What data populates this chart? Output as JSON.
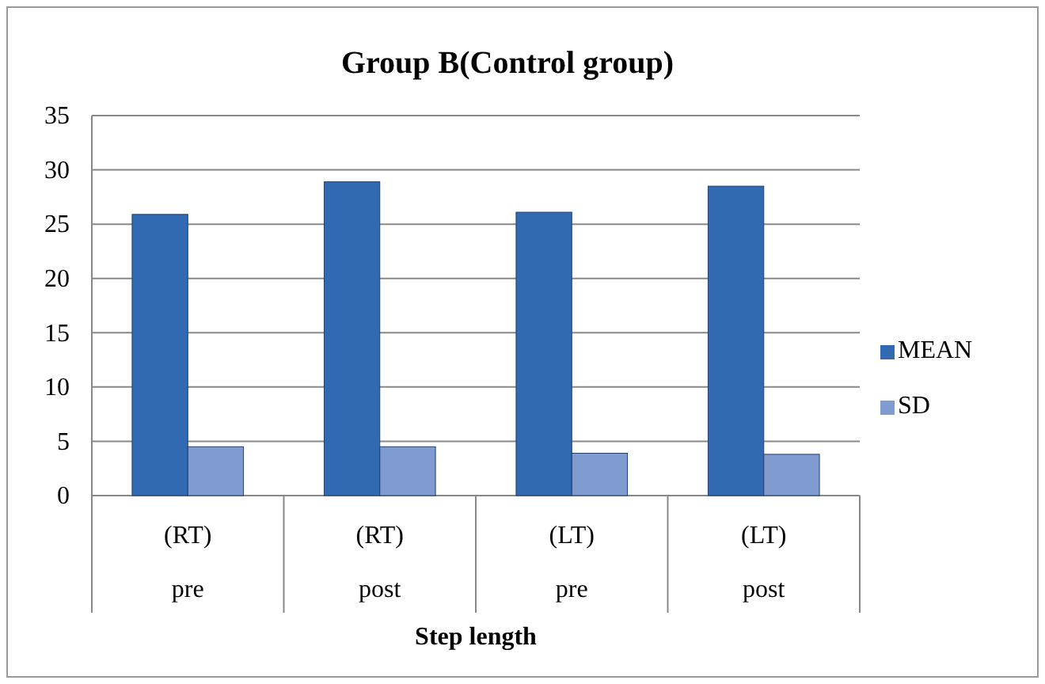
{
  "chart_data": {
    "type": "bar",
    "title": "Group B(Control group)",
    "xlabel": "Step length",
    "categories": [
      "(RT) pre",
      "(RT) post",
      "(LT) pre",
      "(LT) post"
    ],
    "series": [
      {
        "name": "MEAN",
        "color": "#3169b3",
        "values": [
          25.9,
          28.9,
          26.1,
          28.5
        ]
      },
      {
        "name": "SD",
        "color": "#7f9bcf",
        "values": [
          4.5,
          4.5,
          3.9,
          3.8
        ]
      }
    ],
    "ylim": [
      0,
      35
    ],
    "yticks": [
      0,
      5,
      10,
      15,
      20,
      25,
      30,
      35
    ],
    "grid": "y",
    "legend": "right"
  }
}
